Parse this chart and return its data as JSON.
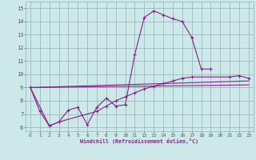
{
  "xlabel": "Windchill (Refroidissement éolien,°C)",
  "background_color": "#cce8e8",
  "grid_color": "#99bbbb",
  "line_color": "#882288",
  "xlim": [
    -0.5,
    23.5
  ],
  "ylim": [
    5.7,
    15.5
  ],
  "xticks": [
    0,
    1,
    2,
    3,
    4,
    5,
    6,
    7,
    8,
    9,
    10,
    11,
    12,
    13,
    14,
    15,
    16,
    17,
    18,
    19,
    20,
    21,
    22,
    23
  ],
  "yticks": [
    6,
    7,
    8,
    9,
    10,
    11,
    12,
    13,
    14,
    15
  ],
  "c1x": [
    0,
    1,
    2,
    3,
    4,
    5,
    6,
    7,
    8,
    9,
    10,
    11,
    12,
    13,
    14,
    15,
    16,
    17,
    18,
    19
  ],
  "c1y": [
    9.0,
    7.2,
    6.1,
    6.4,
    7.3,
    7.5,
    6.2,
    7.5,
    8.2,
    7.6,
    7.7,
    11.5,
    14.3,
    14.8,
    14.5,
    14.2,
    14.0,
    12.8,
    10.4,
    10.4
  ],
  "c2x": [
    0,
    2,
    3,
    7,
    8,
    9,
    10,
    11,
    12,
    13,
    14,
    15,
    16,
    17,
    21,
    22,
    23
  ],
  "c2y": [
    9.0,
    6.1,
    6.4,
    7.2,
    7.6,
    8.0,
    8.3,
    8.6,
    8.9,
    9.1,
    9.3,
    9.5,
    9.7,
    9.8,
    9.8,
    9.9,
    9.7
  ],
  "c3x": [
    0,
    23
  ],
  "c3y": [
    9.0,
    9.5
  ],
  "c4x": [
    0,
    23
  ],
  "c4y": [
    9.0,
    9.2
  ]
}
